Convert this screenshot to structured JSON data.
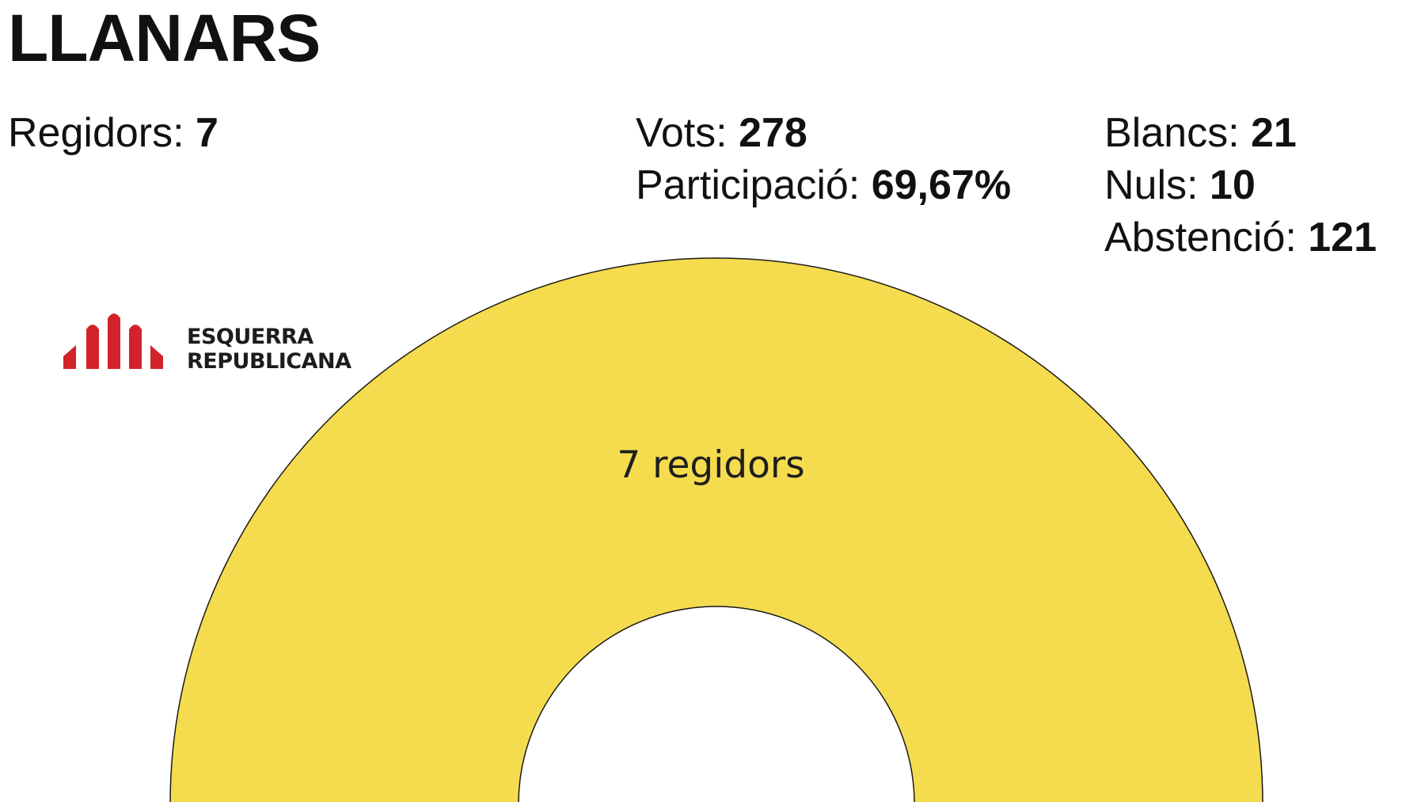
{
  "header": {
    "title": "LLANARS"
  },
  "stats": {
    "regidors_label": "Regidors: ",
    "regidors_value": "7",
    "vots_label": "Vots: ",
    "vots_value": "278",
    "participacio_label": "Participació: ",
    "participacio_value": "69,67%",
    "blancs_label": "Blancs: ",
    "blancs_value": "21",
    "nuls_label": "Nuls: ",
    "nuls_value": "10",
    "abstencio_label": "Abstenció: ",
    "abstencio_value": "121"
  },
  "legend": {
    "party_line1": "ESQUERRA",
    "party_line2": "REPUBLICANA",
    "logo_color": "#D2232A"
  },
  "chart_data": {
    "type": "pie",
    "subtype": "parliament-half-donut",
    "total_seats": 7,
    "series": [
      {
        "name": "ESQUERRA REPUBLICANA",
        "seats": 7,
        "label": "7 regidors",
        "color": "#F5DC4E"
      }
    ]
  }
}
